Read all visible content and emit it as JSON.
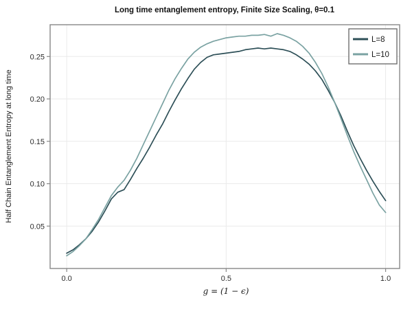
{
  "title": "Long time entanglement entropy, Finite Size Scaling, θ=0.1",
  "colors": {
    "l8_line": "#2d4f57",
    "l10_line": "#7aa2a2",
    "frame": "#878787",
    "grid": "#eaeaea",
    "tick": "#878787",
    "tick_label": "#2b2b2b",
    "legend_border": "#6e6e6e",
    "background": "#ffffff"
  },
  "chart_data": {
    "type": "line",
    "title": "Long time entanglement entropy, Finite Size Scaling, θ=0.1",
    "xlabel": "g = (1 − ϵ)",
    "ylabel": "Half Chain Entanglement Entropy at long time",
    "xlim": [
      -0.052,
      1.044
    ],
    "ylim": [
      0,
      0.2875
    ],
    "grid": true,
    "legend_position": "top-right",
    "xticks": {
      "values": [
        0.0,
        0.5,
        1.0
      ],
      "labels": [
        "0.0",
        "0.5",
        "1.0"
      ]
    },
    "yticks": {
      "values": [
        0.05,
        0.1,
        0.15,
        0.2,
        0.25
      ],
      "labels": [
        "0.05",
        "0.10",
        "0.15",
        "0.20",
        "0.25"
      ]
    },
    "x": [
      0.0,
      0.02,
      0.04,
      0.06,
      0.08,
      0.1,
      0.12,
      0.14,
      0.16,
      0.18,
      0.2,
      0.22,
      0.24,
      0.26,
      0.28,
      0.3,
      0.32,
      0.34,
      0.36,
      0.38,
      0.4,
      0.42,
      0.44,
      0.46,
      0.48,
      0.5,
      0.52,
      0.54,
      0.56,
      0.58,
      0.6,
      0.62,
      0.64,
      0.66,
      0.68,
      0.7,
      0.72,
      0.74,
      0.76,
      0.78,
      0.8,
      0.82,
      0.84,
      0.86,
      0.88,
      0.9,
      0.92,
      0.94,
      0.96,
      0.98,
      1.0
    ],
    "series": [
      {
        "name": "L=8",
        "color": "#2d4f57",
        "values": [
          0.018,
          0.022,
          0.028,
          0.035,
          0.044,
          0.055,
          0.068,
          0.082,
          0.09,
          0.093,
          0.105,
          0.118,
          0.13,
          0.143,
          0.157,
          0.17,
          0.185,
          0.199,
          0.212,
          0.224,
          0.235,
          0.243,
          0.249,
          0.252,
          0.253,
          0.254,
          0.255,
          0.256,
          0.258,
          0.259,
          0.26,
          0.259,
          0.26,
          0.259,
          0.258,
          0.256,
          0.252,
          0.247,
          0.241,
          0.233,
          0.223,
          0.21,
          0.196,
          0.18,
          0.162,
          0.145,
          0.13,
          0.116,
          0.103,
          0.091,
          0.08
        ]
      },
      {
        "name": "L=10",
        "color": "#7aa2a2",
        "values": [
          0.015,
          0.02,
          0.027,
          0.035,
          0.046,
          0.058,
          0.072,
          0.086,
          0.096,
          0.104,
          0.116,
          0.13,
          0.146,
          0.162,
          0.178,
          0.194,
          0.21,
          0.224,
          0.236,
          0.247,
          0.255,
          0.261,
          0.265,
          0.268,
          0.27,
          0.272,
          0.273,
          0.274,
          0.274,
          0.275,
          0.275,
          0.276,
          0.274,
          0.277,
          0.275,
          0.272,
          0.268,
          0.262,
          0.254,
          0.243,
          0.23,
          0.214,
          0.196,
          0.177,
          0.157,
          0.138,
          0.121,
          0.105,
          0.089,
          0.075,
          0.066
        ]
      }
    ]
  }
}
